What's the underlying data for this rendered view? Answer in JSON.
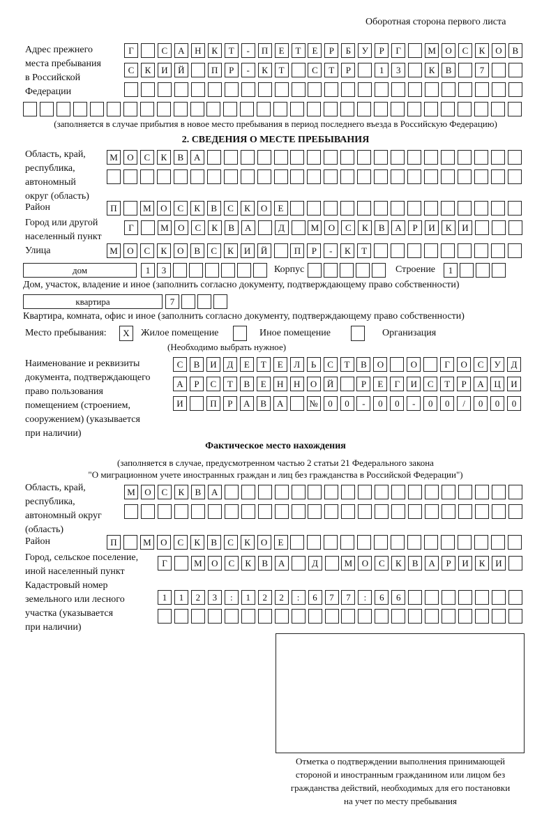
{
  "header": {
    "page_side": "Оборотная сторона первого листа"
  },
  "prev_address": {
    "label": "Адрес прежнего\nместа пребывания\nв Российской\nФедерации",
    "rows": [
      [
        "Г",
        "",
        "С",
        "А",
        "Н",
        "К",
        "Т",
        "-",
        "П",
        "Е",
        "Т",
        "Е",
        "Р",
        "Б",
        "У",
        "Р",
        "Г",
        "",
        "М",
        "О",
        "С",
        "К",
        "О",
        "В"
      ],
      [
        "С",
        "К",
        "И",
        "Й",
        "",
        "П",
        "Р",
        "-",
        "К",
        "Т",
        "",
        "С",
        "Т",
        "Р",
        "",
        "1",
        "3",
        "",
        "К",
        "В",
        "",
        "7",
        "",
        ""
      ],
      [
        "",
        "",
        "",
        "",
        "",
        "",
        "",
        "",
        "",
        "",
        "",
        "",
        "",
        "",
        "",
        "",
        "",
        "",
        "",
        "",
        "",
        "",
        "",
        ""
      ],
      [
        "",
        "",
        "",
        "",
        "",
        "",
        "",
        "",
        "",
        "",
        "",
        "",
        "",
        "",
        "",
        "",
        "",
        "",
        "",
        "",
        "",
        "",
        "",
        "",
        "",
        "",
        "",
        "",
        "",
        ""
      ]
    ],
    "note": "(заполняется в случае прибытия в новое место пребывания в период последнего въезда в Российскую Федерацию)"
  },
  "section2": {
    "title": "2. СВЕДЕНИЯ О МЕСТЕ ПРЕБЫВАНИЯ",
    "region_label": "Область, край,\nреспублика,\nавтономный\nокруг (область)",
    "region_rows": [
      [
        "М",
        "О",
        "С",
        "К",
        "В",
        "А",
        "",
        "",
        "",
        "",
        "",
        "",
        "",
        "",
        "",
        "",
        "",
        "",
        "",
        "",
        "",
        "",
        "",
        "",
        ""
      ],
      [
        "",
        "",
        "",
        "",
        "",
        "",
        "",
        "",
        "",
        "",
        "",
        "",
        "",
        "",
        "",
        "",
        "",
        "",
        "",
        "",
        "",
        "",
        "",
        "",
        ""
      ]
    ],
    "district_label": "Район",
    "district_row": [
      "П",
      "",
      "М",
      "О",
      "С",
      "К",
      "В",
      "С",
      "К",
      "О",
      "Е",
      "",
      "",
      "",
      "",
      "",
      "",
      "",
      "",
      "",
      "",
      "",
      "",
      "",
      ""
    ],
    "city_label": "Город или другой\nнаселенный пункт",
    "city_row": [
      "Г",
      "",
      "М",
      "О",
      "С",
      "К",
      "В",
      "А",
      "",
      "Д",
      "",
      "М",
      "О",
      "С",
      "К",
      "В",
      "А",
      "Р",
      "И",
      "К",
      "И",
      "",
      "",
      ""
    ],
    "street_label": "Улица",
    "street_row": [
      "М",
      "О",
      "С",
      "К",
      "О",
      "В",
      "С",
      "К",
      "И",
      "Й",
      "",
      "П",
      "Р",
      "-",
      "К",
      "Т",
      "",
      "",
      "",
      "",
      "",
      "",
      "",
      "",
      ""
    ],
    "house_type": "дом",
    "house_cells": [
      "1",
      "3",
      "",
      "",
      "",
      "",
      "",
      ""
    ],
    "korpus_label": "Корпус",
    "korpus_cells": [
      "",
      "",
      "",
      "",
      ""
    ],
    "building_label": "Строение",
    "building_cells": [
      "1",
      "",
      "",
      ""
    ],
    "house_note": "Дом, участок, владение и иное (заполнить согласно документу, подтверждающему право собственности)",
    "flat_type": "квартира",
    "flat_cells": [
      "7",
      "",
      "",
      ""
    ],
    "flat_note": "Квартира, комната, офис и иное (заполнить согласно документу, подтверждающему право собственности)",
    "stay_place_label": "Место пребывания:",
    "stay_options": [
      {
        "label": "Жилое помещение",
        "mark": "X",
        "checked": true
      },
      {
        "label": "Иное помещение",
        "mark": "",
        "checked": false
      },
      {
        "label": "Организация",
        "mark": "",
        "checked": false
      }
    ],
    "stay_note": "(Необходимо выбрать нужное)",
    "doc_label": "Наименование и реквизиты\nдокумента, подтверждающего\nправо пользования\nпомещением (строением,\nсооружением) (указывается\nпри наличии)",
    "doc_rows": [
      [
        "С",
        "В",
        "И",
        "Д",
        "Е",
        "Т",
        "Е",
        "Л",
        "Ь",
        "С",
        "Т",
        "В",
        "О",
        "",
        "О",
        "",
        "Г",
        "О",
        "С",
        "У",
        "Д"
      ],
      [
        "А",
        "Р",
        "С",
        "Т",
        "В",
        "Е",
        "Н",
        "Н",
        "О",
        "Й",
        "",
        "Р",
        "Е",
        "Г",
        "И",
        "С",
        "Т",
        "Р",
        "А",
        "Ц",
        "И"
      ],
      [
        "И",
        "",
        "П",
        "Р",
        "А",
        "В",
        "А",
        "",
        "№",
        "0",
        "0",
        "-",
        "0",
        "0",
        "-",
        "0",
        "0",
        "/",
        "0",
        "0",
        "0"
      ]
    ]
  },
  "actual": {
    "title": "Фактическое место нахождения",
    "note1": "(заполняется в случае, предусмотренном частью 2 статьи 21 Федерального закона",
    "note2": "\"О миграционном учете иностранных граждан и лиц без гражданства в Российской Федерации\")",
    "region_label": "Область, край,\nреспублика,\nавтономный округ\n(область)",
    "region_rows": [
      [
        "М",
        "О",
        "С",
        "К",
        "В",
        "А",
        "",
        "",
        "",
        "",
        "",
        "",
        "",
        "",
        "",
        "",
        "",
        "",
        "",
        "",
        "",
        "",
        "",
        ""
      ],
      [
        "",
        "",
        "",
        "",
        "",
        "",
        "",
        "",
        "",
        "",
        "",
        "",
        "",
        "",
        "",
        "",
        "",
        "",
        "",
        "",
        "",
        "",
        "",
        ""
      ]
    ],
    "district_label": "Район",
    "district_row": [
      "П",
      "",
      "М",
      "О",
      "С",
      "К",
      "В",
      "С",
      "К",
      "О",
      "Е",
      "",
      "",
      "",
      "",
      "",
      "",
      "",
      "",
      "",
      "",
      "",
      "",
      "",
      ""
    ],
    "city_label": "Город, сельское поселение,\nиной населенный пункт",
    "city_row": [
      "Г",
      "",
      "М",
      "О",
      "С",
      "К",
      "В",
      "А",
      "",
      "Д",
      "",
      "М",
      "О",
      "С",
      "К",
      "В",
      "А",
      "Р",
      "И",
      "К",
      "И",
      ""
    ],
    "cadastre_label": "Кадастровый номер\nземельного или лесного\nучастка (указывается\nпри наличии)",
    "cadastre_rows": [
      [
        "1",
        "1",
        "2",
        "3",
        ":",
        "1",
        "2",
        "2",
        ":",
        "6",
        "7",
        "7",
        ":",
        "6",
        "6",
        "",
        "",
        "",
        "",
        "",
        "",
        ""
      ],
      [
        "",
        "",
        "",
        "",
        "",
        "",
        "",
        "",
        "",
        "",
        "",
        "",
        "",
        "",
        "",
        "",
        "",
        "",
        "",
        "",
        "",
        ""
      ]
    ]
  },
  "confirmation": {
    "caption": "Отметка о подтверждении выполнения принимающей\nстороной и иностранным гражданином или лицом без\nгражданства действий, необходимых для его постановки\nна учет по месту пребывания"
  }
}
